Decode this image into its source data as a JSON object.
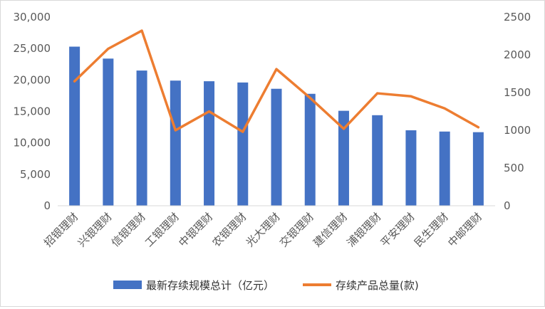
{
  "chart_data": {
    "type": "bar",
    "categories": [
      "招银理财",
      "兴银理财",
      "信银理财",
      "工银理财",
      "中银理财",
      "农银理财",
      "光大理财",
      "交银理财",
      "建信理财",
      "浦银理财",
      "平安理财",
      "民生理财",
      "中邮理财"
    ],
    "series": [
      {
        "name": "最新存续规模总计（亿元）",
        "type": "bar",
        "axis": "left",
        "color": "#4472C4",
        "values": [
          25300,
          23400,
          21500,
          19900,
          19800,
          19600,
          18600,
          17800,
          15100,
          14400,
          12000,
          11800,
          11700
        ]
      },
      {
        "name": "存续产品总量(款)",
        "type": "line",
        "axis": "right",
        "color": "#ED7D31",
        "values": [
          1650,
          2080,
          2320,
          1000,
          1250,
          980,
          1810,
          1430,
          1020,
          1490,
          1450,
          1290,
          1040
        ]
      }
    ],
    "y_left": {
      "min": 0,
      "max": 30000,
      "step": 5000,
      "ticks": [
        "0",
        "5,000",
        "10,000",
        "15,000",
        "20,000",
        "25,000",
        "30,000"
      ]
    },
    "y_right": {
      "min": 0,
      "max": 2500,
      "step": 500,
      "ticks": [
        "0",
        "500",
        "1000",
        "1500",
        "2000",
        "2500"
      ]
    },
    "grid": false,
    "legend": "bottom"
  }
}
